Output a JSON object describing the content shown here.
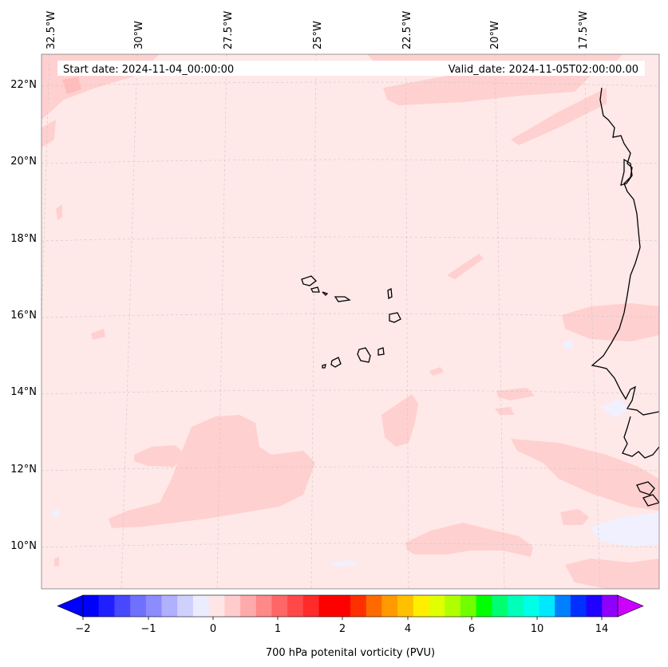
{
  "header": {
    "start_date": "Start date: 2024-11-04_00:00:00",
    "valid_date": "Valid_date: 2024-11-05T02:00:00.00"
  },
  "map": {
    "longitude_labels": [
      "32.5°W",
      "30°W",
      "27.5°W",
      "25°W",
      "22.5°W",
      "20°W",
      "17.5°W"
    ],
    "latitude_labels": [
      "22°N",
      "20°N",
      "18°N",
      "16°N",
      "14°N",
      "12°N",
      "10°N"
    ],
    "field_colors": {
      "background": "#ffe8e8",
      "light_positive": "#ffd0d0",
      "light_negative": "#f0f0ff",
      "coastline": "#000000"
    }
  },
  "colorbar": {
    "label": "700 hPa potenital vorticity (PVU)",
    "ticks": [
      "−2",
      "−1",
      "0",
      "1",
      "2",
      "4",
      "6",
      "10",
      "14"
    ],
    "colors": [
      "#0000ff",
      "#2020ff",
      "#4848ff",
      "#7070ff",
      "#8c8cff",
      "#b0b0ff",
      "#d0d0ff",
      "#ececff",
      "#ffe6e6",
      "#ffcccc",
      "#ffaaaa",
      "#ff8888",
      "#ff6666",
      "#ff4848",
      "#ff2a2a",
      "#ff0000",
      "#ff0000",
      "#ff3000",
      "#ff6a00",
      "#ff9a00",
      "#ffc000",
      "#ffee00",
      "#e0ff00",
      "#b0ff00",
      "#70ff00",
      "#00ff00",
      "#00ff70",
      "#00ffb8",
      "#00ffe8",
      "#00e8ff",
      "#0080ff",
      "#0030ff",
      "#2000ff",
      "#9000ff"
    ],
    "min_extend_color": "#0000ff",
    "max_extend_color": "#cc00ff"
  }
}
